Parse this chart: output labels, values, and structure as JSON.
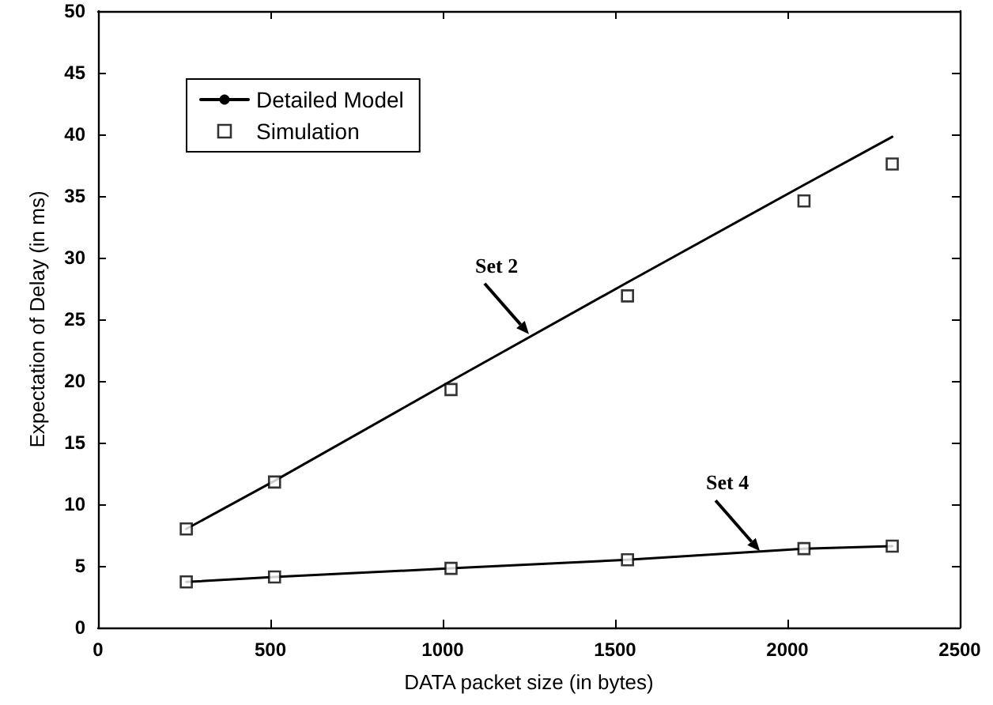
{
  "chart_data": {
    "type": "line",
    "xlabel": "DATA packet size (in bytes)",
    "ylabel": "Expectation of Delay (in ms)",
    "x": [
      256,
      512,
      1024,
      1536,
      2048,
      2304
    ],
    "series": [
      {
        "name": "Detailed Model",
        "color": "#000000",
        "marker": "none",
        "line_style": "solid",
        "values": [
          8.0,
          11.9,
          20.0,
          28.0,
          35.9,
          39.8
        ]
      },
      {
        "color": "#000000",
        "marker": "none",
        "line_style": "solid",
        "values": [
          3.7,
          4.1,
          4.8,
          5.5,
          6.4,
          6.6
        ]
      },
      {
        "name": "Simulation",
        "type": "scatter",
        "color": "#000000",
        "marker": "square",
        "values": [
          8.0,
          11.8,
          19.3,
          26.9,
          34.6,
          37.6
        ]
      },
      {
        "type": "scatter",
        "color": "#000000",
        "marker": "square",
        "values": [
          3.7,
          4.1,
          4.8,
          5.5,
          6.4,
          6.6
        ]
      }
    ],
    "annotations": [
      {
        "text": "Set 2",
        "x": 1250,
        "y": 23.8
      },
      {
        "text": "Set 4",
        "x": 1920,
        "y": 6.2
      }
    ],
    "xlim": [
      0,
      2500
    ],
    "xticks": [
      0,
      500,
      1000,
      1500,
      2000,
      2500
    ],
    "ylim": [
      0,
      50
    ],
    "yticks": [
      0,
      5,
      10,
      15,
      20,
      25,
      30,
      35,
      40,
      45,
      50
    ],
    "grid": false,
    "legend": "top left"
  }
}
